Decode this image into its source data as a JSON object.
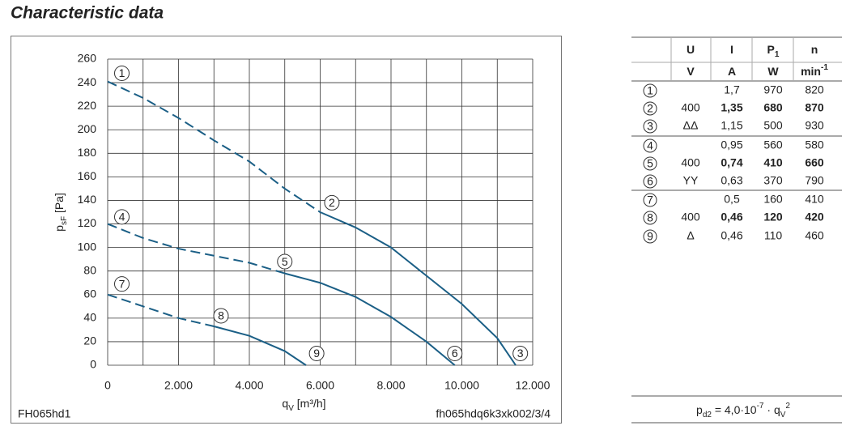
{
  "title": "Characteristic data",
  "chart_data": {
    "type": "line",
    "ylabel": [
      {
        "text": "p"
      },
      {
        "text": "sF",
        "style": "sub"
      },
      {
        "text": " [Pa]"
      }
    ],
    "xlabel": [
      {
        "text": "q"
      },
      {
        "text": "V",
        "style": "sub"
      },
      {
        "text": " [m³/h]"
      }
    ],
    "xlim": [
      0,
      12000
    ],
    "ylim": [
      0,
      260
    ],
    "xticks": [
      {
        "value": 0,
        "label": "0"
      },
      {
        "value": 2000,
        "label": "2.000"
      },
      {
        "value": 4000,
        "label": "4.000"
      },
      {
        "value": 6000,
        "label": "6.000"
      },
      {
        "value": 8000,
        "label": "8.000"
      },
      {
        "value": 10000,
        "label": "10.000"
      },
      {
        "value": 12000,
        "label": "12.000"
      }
    ],
    "minor_xticks": [
      1000,
      3000,
      5000,
      7000,
      9000,
      11000
    ],
    "yticks": [
      0,
      20,
      40,
      60,
      80,
      100,
      120,
      140,
      160,
      180,
      200,
      220,
      240,
      260
    ],
    "grid": true,
    "series": [
      {
        "color": "#1b5f86",
        "dashed": true,
        "x": [
          0,
          1000,
          2000,
          3000,
          4000,
          5000,
          6000
        ],
        "values": [
          241,
          227,
          210,
          191,
          173,
          150,
          130
        ]
      },
      {
        "color": "#1b5f86",
        "dashed": false,
        "x": [
          6000,
          7000,
          8000,
          9000,
          10000,
          11000,
          11520
        ],
        "values": [
          130,
          117,
          100,
          76,
          52,
          23,
          0
        ]
      },
      {
        "color": "#1b5f86",
        "dashed": true,
        "x": [
          0,
          1000,
          2000,
          3000,
          4000,
          5000
        ],
        "values": [
          120,
          108,
          99,
          93,
          87,
          78
        ]
      },
      {
        "color": "#1b5f86",
        "dashed": false,
        "x": [
          5000,
          6000,
          7000,
          8000,
          9000,
          9800
        ],
        "values": [
          78,
          70,
          58,
          41,
          20,
          0
        ]
      },
      {
        "color": "#1b5f86",
        "dashed": true,
        "x": [
          0,
          1000,
          2000,
          3000
        ],
        "values": [
          60,
          50,
          40,
          33
        ]
      },
      {
        "color": "#1b5f86",
        "dashed": false,
        "x": [
          3000,
          4000,
          5000,
          5600
        ],
        "values": [
          33,
          25,
          12,
          0
        ]
      }
    ],
    "annotations": [
      {
        "text": "1",
        "x": 400,
        "y": 248
      },
      {
        "text": "2",
        "x": 6330,
        "y": 138
      },
      {
        "text": "3",
        "x": 11650,
        "y": 10
      },
      {
        "text": "4",
        "x": 400,
        "y": 126
      },
      {
        "text": "5",
        "x": 5000,
        "y": 88
      },
      {
        "text": "6",
        "x": 9800,
        "y": 10
      },
      {
        "text": "7",
        "x": 400,
        "y": 69
      },
      {
        "text": "8",
        "x": 3200,
        "y": 42
      },
      {
        "text": "9",
        "x": 5900,
        "y": 10
      }
    ],
    "footer_left": "FH065hd1",
    "footer_right": "fh065hdq6k3xk002/3/4"
  },
  "table": {
    "header": [
      [
        {
          "text": "U"
        }
      ],
      [
        {
          "text": "I"
        }
      ],
      [
        {
          "text": "P"
        },
        {
          "text": "1",
          "style": "sub"
        }
      ],
      [
        {
          "text": "n"
        }
      ]
    ],
    "units": [
      [
        {
          "text": "V"
        }
      ],
      [
        {
          "text": "A"
        }
      ],
      [
        {
          "text": "W"
        }
      ],
      [
        {
          "text": "min"
        },
        {
          "text": "-1",
          "style": "sup"
        }
      ]
    ],
    "rows": [
      {
        "id": "1",
        "i": "1,7",
        "p": "970",
        "n": "820"
      },
      {
        "id": "2",
        "u": "400",
        "i": "1,35",
        "p": "680",
        "n": "870",
        "bold": true
      },
      {
        "id": "3",
        "u": "ΔΔ",
        "i": "1,15",
        "p": "500",
        "n": "930"
      },
      {
        "id": "4",
        "i": "0,95",
        "p": "560",
        "n": "580"
      },
      {
        "id": "5",
        "u": "400",
        "i": "0,74",
        "p": "410",
        "n": "660",
        "bold": true
      },
      {
        "id": "6",
        "u": "YY",
        "i": "0,63",
        "p": "370",
        "n": "790"
      },
      {
        "id": "7",
        "i": "0,5",
        "p": "160",
        "n": "410"
      },
      {
        "id": "8",
        "u": "400",
        "i": "0,46",
        "p": "120",
        "n": "420",
        "bold": true
      },
      {
        "id": "9",
        "u": "Δ",
        "i": "0,46",
        "p": "110",
        "n": "460"
      }
    ]
  },
  "formula": [
    {
      "text": "p"
    },
    {
      "text": "d2",
      "style": "sub"
    },
    {
      "text": " = 4,0·10"
    },
    {
      "text": "-7",
      "style": "sup"
    },
    {
      "text": " · q"
    },
    {
      "text": "V",
      "style": "sub"
    },
    {
      "text": "2",
      "style": "sup"
    }
  ]
}
